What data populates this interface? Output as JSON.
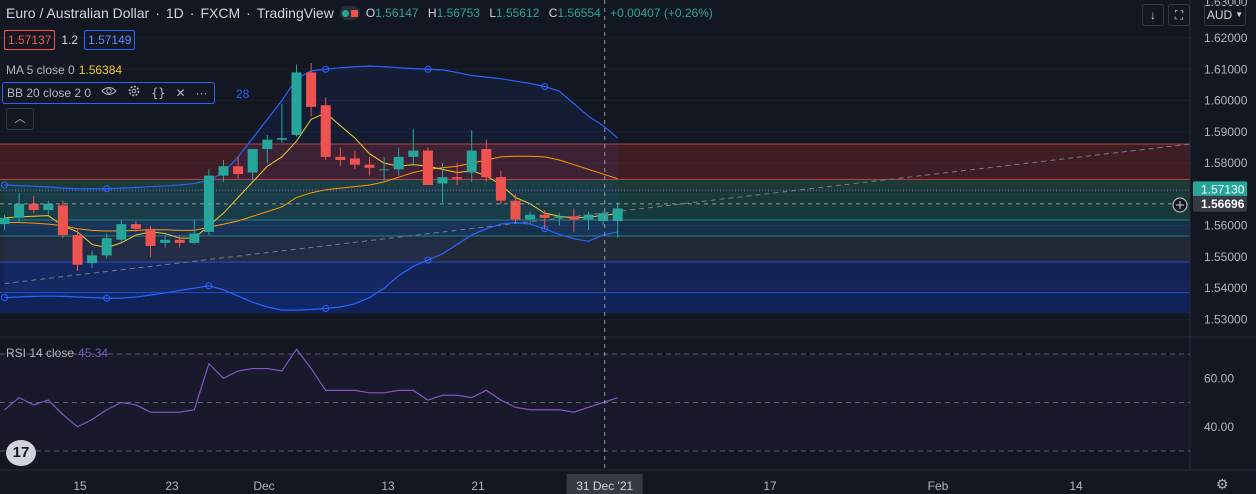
{
  "header": {
    "symbol": "Euro / Australian Dollar",
    "interval": "1D",
    "exchange": "FXCM",
    "source": "TradingView",
    "ohlc_o_label": "O",
    "ohlc_o": "1.56147",
    "ohlc_h_label": "H",
    "ohlc_h": "1.56753",
    "ohlc_l_label": "L",
    "ohlc_l": "1.55612",
    "ohlc_c_label": "C",
    "ohlc_c": "1.56554",
    "change": "+0.00407 (+0.26%)"
  },
  "trade": {
    "sell": "1.57137",
    "spread": "1.2",
    "buy": "1.57149"
  },
  "indicators": {
    "ma_label": "MA 5 close 0",
    "ma_value": "1.56384",
    "bb_label": "BB 20 close 2 0",
    "bb_value_tail": "28",
    "rsi_label": "RSI 14 close",
    "rsi_value": "45.34"
  },
  "toolbar": {
    "currency": "AUD"
  },
  "price_scale": {
    "ticks": [
      "1.62000",
      "1.61000",
      "1.60000",
      "1.59000",
      "1.58000",
      "1.57000",
      "1.56000",
      "1.55000",
      "1.54000",
      "1.53000"
    ],
    "top_partial": "1.63000",
    "badge_price": "1.57130",
    "cross_price": "1.56696"
  },
  "rsi_scale": {
    "ticks": [
      "60.00",
      "40.00"
    ]
  },
  "time_axis": {
    "labels": [
      "15",
      "23",
      "Dec",
      "13",
      "21",
      "17",
      "Feb",
      "14"
    ],
    "crosshair_label": "31 Dec '21"
  },
  "colors": {
    "up": "#26a69a",
    "down": "#ef5350",
    "ma": "#f0c929",
    "bb": "#2962ff",
    "bb_basis": "#ff9800",
    "rsi": "#7e57c2"
  },
  "chart_data": {
    "type": "candlestick",
    "title": "Euro / Australian Dollar",
    "ylim": [
      1.528,
      1.632
    ],
    "candles": [
      {
        "o": 1.5605,
        "h": 1.5635,
        "l": 1.5585,
        "c": 1.5625
      },
      {
        "o": 1.5625,
        "h": 1.5705,
        "l": 1.561,
        "c": 1.567
      },
      {
        "o": 1.567,
        "h": 1.5695,
        "l": 1.564,
        "c": 1.565
      },
      {
        "o": 1.565,
        "h": 1.568,
        "l": 1.5635,
        "c": 1.567
      },
      {
        "o": 1.5665,
        "h": 1.568,
        "l": 1.556,
        "c": 1.557
      },
      {
        "o": 1.557,
        "h": 1.559,
        "l": 1.5455,
        "c": 1.5475
      },
      {
        "o": 1.548,
        "h": 1.552,
        "l": 1.5465,
        "c": 1.5505
      },
      {
        "o": 1.5505,
        "h": 1.5575,
        "l": 1.5495,
        "c": 1.556
      },
      {
        "o": 1.5555,
        "h": 1.562,
        "l": 1.5545,
        "c": 1.5605
      },
      {
        "o": 1.5605,
        "h": 1.5615,
        "l": 1.558,
        "c": 1.559
      },
      {
        "o": 1.559,
        "h": 1.56,
        "l": 1.55,
        "c": 1.5535
      },
      {
        "o": 1.5545,
        "h": 1.557,
        "l": 1.553,
        "c": 1.5555
      },
      {
        "o": 1.5555,
        "h": 1.557,
        "l": 1.553,
        "c": 1.5545
      },
      {
        "o": 1.5545,
        "h": 1.562,
        "l": 1.554,
        "c": 1.5575
      },
      {
        "o": 1.558,
        "h": 1.578,
        "l": 1.557,
        "c": 1.576
      },
      {
        "o": 1.576,
        "h": 1.581,
        "l": 1.574,
        "c": 1.579
      },
      {
        "o": 1.579,
        "h": 1.582,
        "l": 1.575,
        "c": 1.5765
      },
      {
        "o": 1.577,
        "h": 1.5845,
        "l": 1.5745,
        "c": 1.5845
      },
      {
        "o": 1.5845,
        "h": 1.589,
        "l": 1.58,
        "c": 1.5875
      },
      {
        "o": 1.5875,
        "h": 1.599,
        "l": 1.5865,
        "c": 1.588
      },
      {
        "o": 1.589,
        "h": 1.6115,
        "l": 1.5885,
        "c": 1.609
      },
      {
        "o": 1.609,
        "h": 1.612,
        "l": 1.595,
        "c": 1.598
      },
      {
        "o": 1.5985,
        "h": 1.601,
        "l": 1.581,
        "c": 1.582
      },
      {
        "o": 1.582,
        "h": 1.585,
        "l": 1.579,
        "c": 1.581
      },
      {
        "o": 1.5815,
        "h": 1.584,
        "l": 1.578,
        "c": 1.5795
      },
      {
        "o": 1.5795,
        "h": 1.582,
        "l": 1.576,
        "c": 1.5785
      },
      {
        "o": 1.578,
        "h": 1.582,
        "l": 1.574,
        "c": 1.578
      },
      {
        "o": 1.578,
        "h": 1.585,
        "l": 1.576,
        "c": 1.582
      },
      {
        "o": 1.582,
        "h": 1.591,
        "l": 1.579,
        "c": 1.584
      },
      {
        "o": 1.584,
        "h": 1.585,
        "l": 1.573,
        "c": 1.573
      },
      {
        "o": 1.5735,
        "h": 1.58,
        "l": 1.5675,
        "c": 1.5755
      },
      {
        "o": 1.5755,
        "h": 1.58,
        "l": 1.573,
        "c": 1.575
      },
      {
        "o": 1.577,
        "h": 1.5905,
        "l": 1.574,
        "c": 1.584
      },
      {
        "o": 1.5845,
        "h": 1.5875,
        "l": 1.574,
        "c": 1.5755
      },
      {
        "o": 1.5755,
        "h": 1.5775,
        "l": 1.567,
        "c": 1.568
      },
      {
        "o": 1.568,
        "h": 1.57,
        "l": 1.561,
        "c": 1.562
      },
      {
        "o": 1.562,
        "h": 1.5645,
        "l": 1.5605,
        "c": 1.5635
      },
      {
        "o": 1.5635,
        "h": 1.565,
        "l": 1.559,
        "c": 1.5625
      },
      {
        "o": 1.5625,
        "h": 1.564,
        "l": 1.56,
        "c": 1.563
      },
      {
        "o": 1.563,
        "h": 1.5655,
        "l": 1.558,
        "c": 1.562
      },
      {
        "o": 1.562,
        "h": 1.5645,
        "l": 1.5585,
        "c": 1.5635
      },
      {
        "o": 1.5615,
        "h": 1.5645,
        "l": 1.56,
        "c": 1.564
      },
      {
        "o": 1.5615,
        "h": 1.5675,
        "l": 1.5561,
        "c": 1.5655
      }
    ],
    "ma5": [
      1.5625,
      1.5628,
      1.563,
      1.5632,
      1.56,
      1.558,
      1.554,
      1.553,
      1.5545,
      1.557,
      1.558,
      1.5575,
      1.556,
      1.556,
      1.56,
      1.564,
      1.569,
      1.574,
      1.579,
      1.582,
      1.587,
      1.594,
      1.596,
      1.592,
      1.588,
      1.583,
      1.58,
      1.579,
      1.5795,
      1.579,
      1.578,
      1.577,
      1.5775,
      1.576,
      1.573,
      1.569,
      1.567,
      1.564,
      1.563,
      1.5625,
      1.5627,
      1.5633,
      1.5638
    ],
    "bb_basis": [
      1.561,
      1.561,
      1.5608,
      1.5605,
      1.56,
      1.559,
      1.5585,
      1.5583,
      1.5583,
      1.5585,
      1.5587,
      1.5587,
      1.5585,
      1.5585,
      1.5595,
      1.5605,
      1.5615,
      1.563,
      1.5645,
      1.566,
      1.569,
      1.5705,
      1.5715,
      1.572,
      1.5725,
      1.573,
      1.574,
      1.5755,
      1.577,
      1.578,
      1.5785,
      1.579,
      1.58,
      1.581,
      1.582,
      1.5822,
      1.5822,
      1.582,
      1.581,
      1.5795,
      1.578,
      1.5765,
      1.575
    ],
    "bb_upper": [
      1.573,
      1.5728,
      1.5726,
      1.5724,
      1.572,
      1.5718,
      1.5718,
      1.5718,
      1.572,
      1.5722,
      1.5725,
      1.5727,
      1.573,
      1.5735,
      1.5745,
      1.577,
      1.582,
      1.588,
      1.594,
      1.6,
      1.607,
      1.6095,
      1.61,
      1.6105,
      1.6108,
      1.611,
      1.6108,
      1.6105,
      1.6102,
      1.61,
      1.6098,
      1.609,
      1.608,
      1.6075,
      1.607,
      1.6062,
      1.6055,
      1.6045,
      1.603,
      1.599,
      1.595,
      1.592,
      1.588
    ],
    "bb_lower": [
      1.537,
      1.5372,
      1.5374,
      1.5375,
      1.5374,
      1.5372,
      1.537,
      1.5368,
      1.5368,
      1.5372,
      1.5378,
      1.5385,
      1.5393,
      1.54,
      1.5408,
      1.5395,
      1.5375,
      1.5355,
      1.534,
      1.533,
      1.533,
      1.5332,
      1.5335,
      1.534,
      1.535,
      1.537,
      1.54,
      1.544,
      1.547,
      1.549,
      1.551,
      1.554,
      1.557,
      1.559,
      1.5605,
      1.561,
      1.5605,
      1.559,
      1.5572,
      1.5558,
      1.555,
      1.557,
      1.558
    ],
    "rsi": [
      47,
      52,
      49,
      51,
      45,
      40,
      43,
      47,
      50,
      49,
      46,
      46,
      46,
      47,
      66,
      60,
      63,
      64,
      64,
      63,
      72,
      64,
      55,
      55,
      55,
      54,
      54,
      55,
      55,
      51,
      53,
      53,
      52,
      55,
      51,
      48,
      47,
      47,
      47,
      46,
      48,
      50,
      52
    ],
    "rsi_ylim": [
      30,
      75
    ],
    "rsi_levels": [
      70,
      50,
      30
    ],
    "horizontal_levels": [
      1.5861,
      1.5748,
      1.5618,
      1.5567,
      1.5484,
      1.5386
    ],
    "bid_ask_lines": [
      1.5713,
      1.5714
    ],
    "trend_line": [
      [
        0,
        1.5415
      ],
      [
        54,
        1.5861
      ]
    ]
  }
}
